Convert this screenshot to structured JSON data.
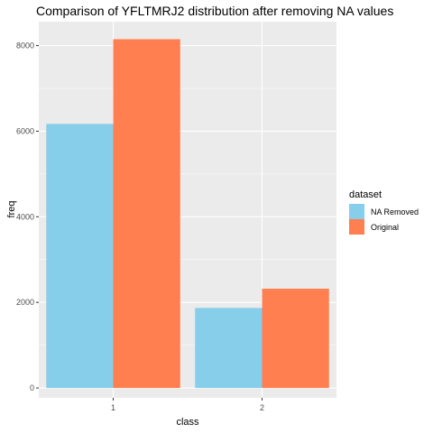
{
  "chart_data": {
    "type": "bar",
    "title": "Comparison of YFLTMRJ2 distribution after removing NA values",
    "xlabel": "class",
    "ylabel": "freq",
    "categories": [
      "1",
      "2"
    ],
    "series": [
      {
        "name": "NA Removed",
        "values": [
          6170,
          1870
        ],
        "color": "#87CEEB"
      },
      {
        "name": "Original",
        "values": [
          8150,
          2320
        ],
        "color": "#FF7F50"
      }
    ],
    "ylim": [
      -230,
      8560
    ],
    "yticks": [
      0,
      2000,
      4000,
      6000,
      8000
    ],
    "grid": true,
    "panel_background": "#EBEBEB",
    "legend": {
      "title": "dataset",
      "placement": "right"
    }
  }
}
